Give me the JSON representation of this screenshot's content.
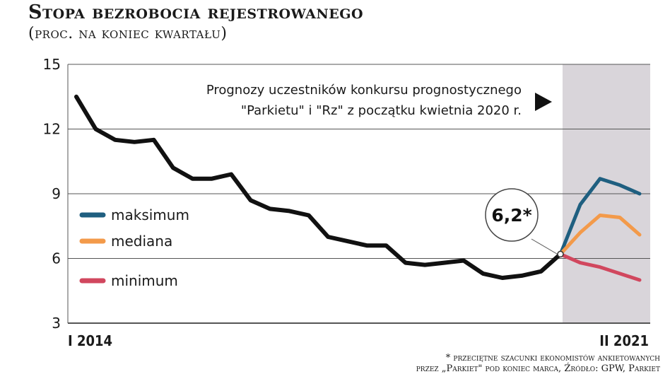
{
  "chart_data": {
    "type": "line",
    "title": "Stopa bezrobocia rejestrowanego",
    "subtitle": "(proc. na koniec kwartału)",
    "x_start_label": "I 2014",
    "x_end_label": "II 2021",
    "ylim": [
      3,
      15
    ],
    "yticks": [
      "15",
      "12",
      "9",
      "6",
      "3"
    ],
    "grid": true,
    "forecast_note_line1": "Prognozy uczestników konkursu prognostycznego",
    "forecast_note_line2": "\"Parkietu\" i \"Rz\" z początku kwietnia 2020 r.",
    "callout_label": "6,2*",
    "historical": {
      "values": [
        13.5,
        12.0,
        11.5,
        11.4,
        11.5,
        10.2,
        9.7,
        9.7,
        9.9,
        8.7,
        8.3,
        8.2,
        8.0,
        7.0,
        6.8,
        6.6,
        6.6,
        5.8,
        5.7,
        5.8,
        5.9,
        5.3,
        5.1,
        5.2,
        5.4,
        6.2
      ]
    },
    "series": [
      {
        "name": "maksimum",
        "color": "#1f5f80",
        "values": [
          6.2,
          8.5,
          9.7,
          9.4,
          9.0
        ]
      },
      {
        "name": "mediana",
        "color": "#f39a4a",
        "values": [
          6.2,
          7.2,
          8.0,
          7.9,
          7.1
        ]
      },
      {
        "name": "minimum",
        "color": "#d1475e",
        "values": [
          6.2,
          5.8,
          5.6,
          5.3,
          5.0
        ]
      }
    ],
    "footnote_line1": "* przeciętne szacunki ekonomistów ankietowanych",
    "footnote_line2": "przez „Parkiet\" pod koniec marca, Źródło: GPW, Parkiet",
    "colors": {
      "historical": "#111111",
      "forecast_band": "#d9d5da",
      "grid": "#555555"
    }
  }
}
